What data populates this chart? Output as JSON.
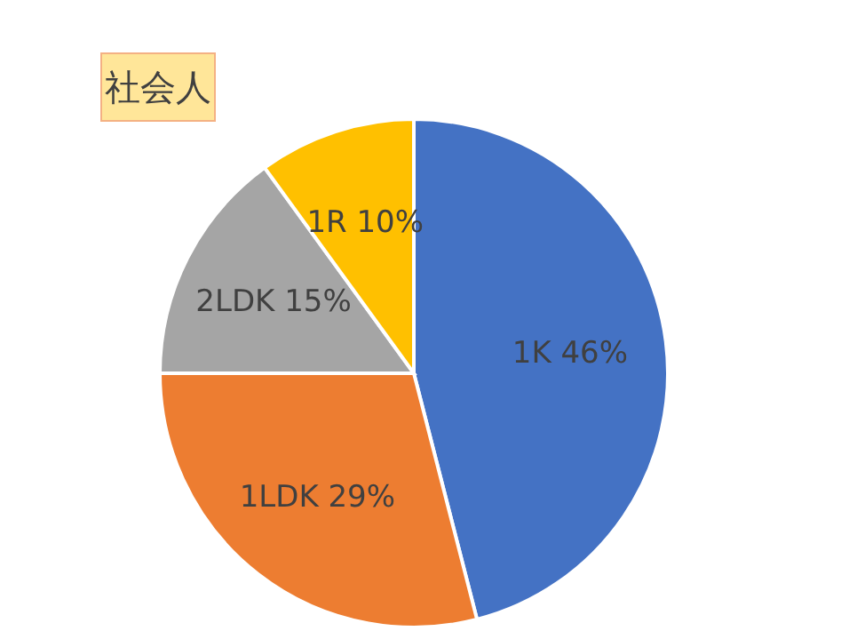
{
  "chart_data": {
    "type": "pie",
    "title": "社会人",
    "categories": [
      "1K",
      "1LDK",
      "2LDK",
      "1R"
    ],
    "values": [
      46,
      29,
      15,
      10
    ],
    "value_labels": [
      "46%",
      "29%",
      "15%",
      "10%"
    ],
    "colors": [
      "#4472c4",
      "#ed7d31",
      "#a5a5a5",
      "#ffc000"
    ]
  }
}
